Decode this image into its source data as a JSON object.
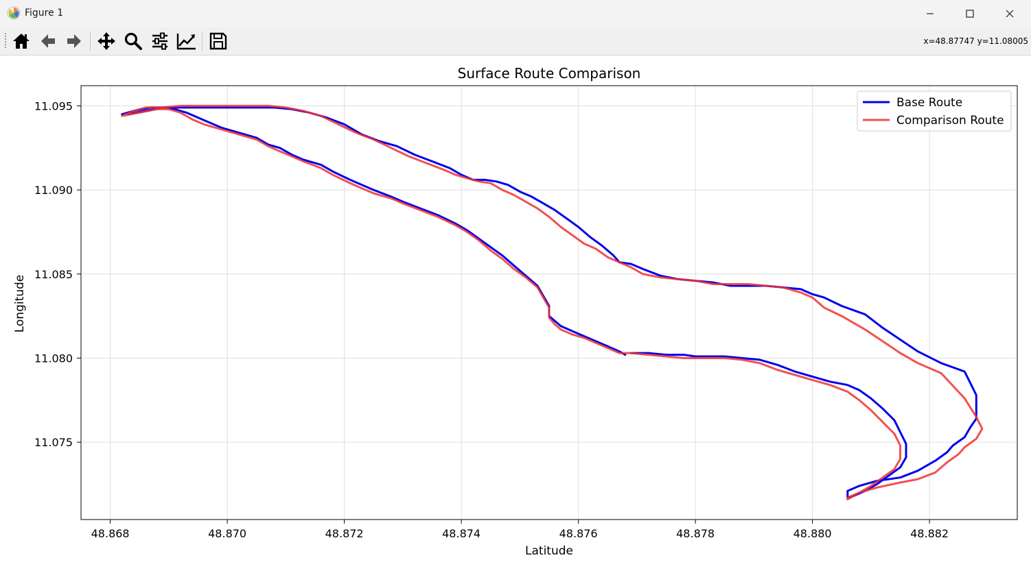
{
  "window": {
    "title": "Figure 1",
    "app_icon": "matplotlib-icon",
    "controls": [
      "minimize-icon",
      "maximize-icon",
      "close-icon"
    ]
  },
  "toolbar": {
    "tools": [
      {
        "name": "home-button",
        "icon": "home-icon"
      },
      {
        "name": "back-button",
        "icon": "arrow-left-icon"
      },
      {
        "name": "forward-button",
        "icon": "arrow-right-icon"
      },
      {
        "name": "pan-button",
        "icon": "move-icon"
      },
      {
        "name": "zoom-button",
        "icon": "magnifier-icon"
      },
      {
        "name": "subplots-button",
        "icon": "sliders-icon"
      },
      {
        "name": "customize-button",
        "icon": "chart-line-icon"
      },
      {
        "name": "save-button",
        "icon": "floppy-disk-icon"
      }
    ],
    "coords": "x=48.87747 y=11.08005"
  },
  "chart_data": {
    "type": "line",
    "title": "Surface Route Comparison",
    "xlabel": "Latitude",
    "ylabel": "Longitude",
    "xlim": [
      48.8675,
      48.8835
    ],
    "ylim": [
      11.0704,
      11.0962
    ],
    "xticks": [
      48.868,
      48.87,
      48.872,
      48.874,
      48.876,
      48.878,
      48.88,
      48.882
    ],
    "xtick_labels": [
      "48.868",
      "48.870",
      "48.872",
      "48.874",
      "48.876",
      "48.878",
      "48.880",
      "48.882"
    ],
    "yticks": [
      11.075,
      11.08,
      11.085,
      11.09,
      11.095
    ],
    "ytick_labels": [
      "11.075",
      "11.080",
      "11.085",
      "11.090",
      "11.095"
    ],
    "grid": true,
    "legend_position": "top-right",
    "series": [
      {
        "name": "Base Route",
        "color": "#0000ee",
        "width": 3,
        "opacity": 1,
        "x": [
          48.8683,
          48.8686,
          48.8689,
          48.8691,
          48.8693,
          48.8695,
          48.8697,
          48.8699,
          48.8702,
          48.8705,
          48.8707,
          48.8709,
          48.8711,
          48.8713,
          48.8716,
          48.8718,
          48.8721,
          48.8723,
          48.8725,
          48.8728,
          48.873,
          48.8733,
          48.8736,
          48.8739,
          48.8741,
          48.8743,
          48.8745,
          48.8747,
          48.8749,
          48.8751,
          48.8753,
          48.8754,
          48.8755,
          48.8755,
          48.8756,
          48.8757,
          48.8759,
          48.8761,
          48.8763,
          48.8765,
          48.8767,
          48.8768
        ],
        "y": [
          11.0945,
          11.0947,
          11.0949,
          11.0948,
          11.0946,
          11.0943,
          11.094,
          11.0937,
          11.0934,
          11.0931,
          11.0927,
          11.0925,
          11.0921,
          11.0918,
          11.0915,
          11.0911,
          11.0906,
          11.0903,
          11.09,
          11.0896,
          11.0893,
          11.0889,
          11.0885,
          11.088,
          11.0876,
          11.0871,
          11.0866,
          11.0861,
          11.0855,
          11.0849,
          11.0843,
          11.0837,
          11.0831,
          11.0825,
          11.0822,
          11.0819,
          11.0816,
          11.0813,
          11.081,
          11.0807,
          11.0804,
          11.0802
        ]
      },
      {
        "name": "",
        "color": "#0000ee",
        "width": 3,
        "opacity": 1,
        "x": [
          48.8769,
          48.8772,
          48.8775,
          48.8778,
          48.878,
          48.8782,
          48.8785,
          48.8788,
          48.8791,
          48.8794,
          48.8797,
          48.88,
          48.8803,
          48.8806,
          48.8808,
          48.881,
          48.8812,
          48.8814,
          48.8815,
          48.8816,
          48.8816,
          48.8815,
          48.8813,
          48.8811,
          48.8809,
          48.8807,
          48.8806,
          48.8806,
          48.8808,
          48.8811,
          48.8815,
          48.8818,
          48.8821,
          48.8823,
          48.8824,
          48.8826,
          48.8827,
          48.8828,
          48.8828,
          48.8828,
          48.8826,
          48.8822,
          48.8818,
          48.8815,
          48.8812,
          48.8809,
          48.8805,
          48.8802,
          48.88,
          48.8798,
          48.8795,
          48.8792,
          48.8789,
          48.8786,
          48.8783,
          48.878,
          48.8777,
          48.8774,
          48.8771,
          48.8769,
          48.8767,
          48.8766,
          48.8764,
          48.8762,
          48.876,
          48.8758,
          48.8756,
          48.8754,
          48.8752,
          48.875,
          48.8748,
          48.8746,
          48.8744,
          48.8742,
          48.874,
          48.8738,
          48.8735,
          48.8732,
          48.8729,
          48.8726,
          48.8723,
          48.872,
          48.8717,
          48.8714,
          48.8711,
          48.8708,
          48.8705,
          48.8702,
          48.8699,
          48.8696,
          48.8693,
          48.869,
          48.8687,
          48.8684,
          48.8682
        ],
        "y": [
          11.0803,
          11.0803,
          11.0802,
          11.0802,
          11.0801,
          11.0801,
          11.0801,
          11.08,
          11.0799,
          11.0796,
          11.0792,
          11.0789,
          11.0786,
          11.0784,
          11.0781,
          11.0776,
          11.077,
          11.0763,
          11.0756,
          11.0749,
          11.0741,
          11.0735,
          11.073,
          11.0725,
          11.0721,
          11.0718,
          11.0717,
          11.0721,
          11.0724,
          11.0727,
          11.0729,
          11.0733,
          11.0739,
          11.0744,
          11.0748,
          11.0753,
          11.0759,
          11.0764,
          11.0771,
          11.0778,
          11.0792,
          11.0797,
          11.0804,
          11.0811,
          11.0818,
          11.0826,
          11.0831,
          11.0836,
          11.0838,
          11.0841,
          11.0842,
          11.0843,
          11.0843,
          11.0843,
          11.0845,
          11.0846,
          11.0847,
          11.0849,
          11.0853,
          11.0856,
          11.0857,
          11.0861,
          11.0867,
          11.0872,
          11.0878,
          11.0883,
          11.0888,
          11.0892,
          11.0896,
          11.0899,
          11.0903,
          11.0905,
          11.0906,
          11.0906,
          11.0909,
          11.0913,
          11.0917,
          11.0921,
          11.0926,
          11.0929,
          11.0933,
          11.0939,
          11.0943,
          11.0946,
          11.0948,
          11.0949,
          11.0949,
          11.0949,
          11.0949,
          11.0949,
          11.0949,
          11.0949,
          11.0949,
          11.0947,
          11.0945
        ]
      },
      {
        "name": "Comparison Route",
        "color": "#ee3333",
        "width": 3,
        "opacity": 0.85,
        "x": [
          48.8682,
          48.8685,
          48.8688,
          48.869,
          48.8692,
          48.8694,
          48.8696,
          48.8699,
          48.8702,
          48.8705,
          48.8707,
          48.8709,
          48.8711,
          48.8713,
          48.8716,
          48.8718,
          48.8721,
          48.8723,
          48.8725,
          48.8728,
          48.873,
          48.8733,
          48.8736,
          48.8739,
          48.8741,
          48.8743,
          48.8745,
          48.8747,
          48.8749,
          48.8751,
          48.8753,
          48.8754,
          48.8755,
          48.8755,
          48.8756,
          48.8757,
          48.8759,
          48.8761,
          48.8763,
          48.8765,
          48.8767,
          48.8769,
          48.8772,
          48.8775,
          48.8778,
          48.878,
          48.8782,
          48.8785,
          48.8788,
          48.8791,
          48.8794,
          48.8797,
          48.88,
          48.8803,
          48.8806,
          48.8808,
          48.881,
          48.8812,
          48.8814,
          48.8815,
          48.8815,
          48.8814,
          48.8812,
          48.881,
          48.8808,
          48.8806,
          48.8806,
          48.8808,
          48.8811,
          48.8815,
          48.8818,
          48.8821,
          48.8823,
          48.8825,
          48.8826,
          48.8828,
          48.8829,
          48.8828,
          48.8826,
          48.8822,
          48.8818,
          48.8815,
          48.8812,
          48.8809,
          48.8805,
          48.8802,
          48.88,
          48.8798,
          48.8795,
          48.8792,
          48.8789,
          48.8786,
          48.8783,
          48.878,
          48.8777,
          48.8774,
          48.8771,
          48.8769,
          48.8767,
          48.8765,
          48.8763,
          48.8761,
          48.8759,
          48.8757,
          48.8755,
          48.8753,
          48.8751,
          48.8749,
          48.8747,
          48.8745,
          48.8743,
          48.8741,
          48.8739,
          48.8737,
          48.8734,
          48.8731,
          48.8728,
          48.8725,
          48.8722,
          48.8719,
          48.8716,
          48.8713,
          48.871,
          48.8707,
          48.8704,
          48.8701,
          48.8698,
          48.8695,
          48.8692,
          48.8689,
          48.8686,
          48.8684,
          48.8682
        ],
        "y": [
          11.0944,
          11.0946,
          11.0948,
          11.0948,
          11.0946,
          11.0942,
          11.0939,
          11.0936,
          11.0933,
          11.093,
          11.0926,
          11.0923,
          11.092,
          11.0917,
          11.0913,
          11.0909,
          11.0904,
          11.0901,
          11.0898,
          11.0895,
          11.0892,
          11.0888,
          11.0884,
          11.0879,
          11.0875,
          11.087,
          11.0864,
          11.0859,
          11.0853,
          11.0848,
          11.0842,
          11.0836,
          11.083,
          11.0824,
          11.082,
          11.0817,
          11.0814,
          11.0812,
          11.0809,
          11.0806,
          11.0803,
          11.0803,
          11.0802,
          11.0801,
          11.08,
          11.08,
          11.08,
          11.08,
          11.0799,
          11.0797,
          11.0793,
          11.079,
          11.0787,
          11.0784,
          11.078,
          11.0775,
          11.0769,
          11.0762,
          11.0755,
          11.0748,
          11.074,
          11.0734,
          11.0729,
          11.0724,
          11.072,
          11.0717,
          11.0716,
          11.072,
          11.0723,
          11.0726,
          11.0728,
          11.0732,
          11.0738,
          11.0743,
          11.0747,
          11.0752,
          11.0758,
          11.0765,
          11.0776,
          11.0791,
          11.0797,
          11.0803,
          11.081,
          11.0817,
          11.0825,
          11.083,
          11.0836,
          11.0839,
          11.0842,
          11.0843,
          11.0844,
          11.0844,
          11.0844,
          11.0846,
          11.0847,
          11.0848,
          11.085,
          11.0854,
          11.0857,
          11.086,
          11.0865,
          11.0868,
          11.0873,
          11.0878,
          11.0884,
          11.0889,
          11.0893,
          11.0897,
          11.09,
          11.0904,
          11.0905,
          11.0907,
          11.0909,
          11.0912,
          11.0916,
          11.092,
          11.0925,
          11.093,
          11.0934,
          11.0939,
          11.0944,
          11.0947,
          11.0949,
          11.095,
          11.095,
          11.095,
          11.095,
          11.095,
          11.095,
          11.0949,
          11.0949,
          11.0947,
          11.0944
        ]
      }
    ]
  }
}
